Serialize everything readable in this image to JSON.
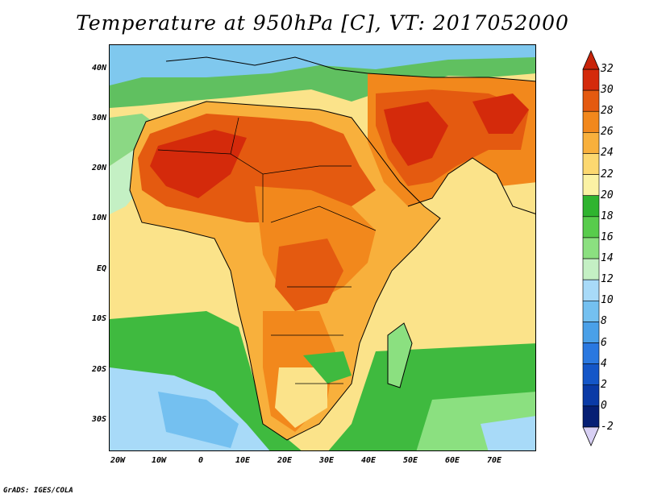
{
  "title": "Temperature at 950hPa [C], VT: 2017052000",
  "credit": "GrADS: IGES/COLA",
  "map": {
    "projection": "lat-lon",
    "lon_range": [
      -22,
      80
    ],
    "lat_range": [
      -37,
      45
    ],
    "lat_tick_labels": [
      "40N",
      "30N",
      "20N",
      "10N",
      "EQ",
      "10S",
      "20S",
      "30S"
    ],
    "lon_tick_labels": [
      "20W",
      "10W",
      "0",
      "10E",
      "20E",
      "30E",
      "40E",
      "50E",
      "60E",
      "70E"
    ],
    "features": [
      "coastlines",
      "country-borders"
    ]
  },
  "colorbar": {
    "levels": [
      "32",
      "30",
      "28",
      "26",
      "24",
      "22",
      "20",
      "18",
      "16",
      "14",
      "12",
      "10",
      "8",
      "6",
      "4",
      "2",
      "0",
      "-2"
    ],
    "colors": [
      "#d42a0b",
      "#e45a10",
      "#f2881c",
      "#f8b03c",
      "#fcd870",
      "#fbf2a4",
      "#2fb42f",
      "#58cc4c",
      "#8be080",
      "#c4f0c4",
      "#a8daf8",
      "#74c0f0",
      "#4aa0e8",
      "#2a78e0",
      "#1456c8",
      "#0a3aa6",
      "#061f74"
    ],
    "top_arrow_color": "#c8240a",
    "bottom_arrow_color": "#d8d0f4"
  }
}
